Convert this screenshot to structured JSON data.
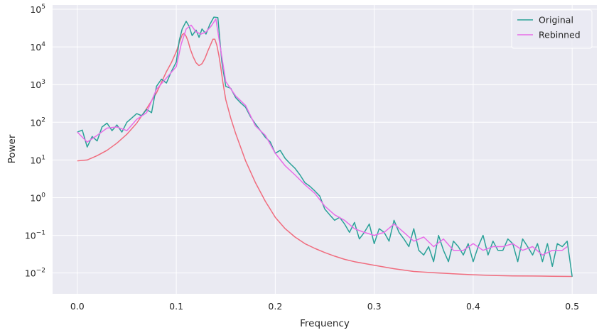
{
  "chart_data": {
    "type": "line",
    "title": "",
    "xlabel": "Frequency",
    "ylabel": "Power",
    "xlim": [
      -0.025,
      0.525
    ],
    "ylim": [
      0.0028,
      130000
    ],
    "yscale": "log",
    "grid": true,
    "legend_position": "top-right",
    "x_ticks": [
      {
        "value": 0.0,
        "label": "0.0"
      },
      {
        "value": 0.1,
        "label": "0.1"
      },
      {
        "value": 0.2,
        "label": "0.2"
      },
      {
        "value": 0.3,
        "label": "0.3"
      },
      {
        "value": 0.4,
        "label": "0.4"
      },
      {
        "value": 0.5,
        "label": "0.5"
      }
    ],
    "y_ticks": [
      {
        "value": 0.01,
        "base": "10",
        "exp": "−2"
      },
      {
        "value": 0.1,
        "base": "10",
        "exp": "−1"
      },
      {
        "value": 1,
        "base": "10",
        "exp": "0"
      },
      {
        "value": 10,
        "base": "10",
        "exp": "1"
      },
      {
        "value": 100,
        "base": "10",
        "exp": "2"
      },
      {
        "value": 1000,
        "base": "10",
        "exp": "3"
      },
      {
        "value": 10000,
        "base": "10",
        "exp": "4"
      },
      {
        "value": 100000,
        "base": "10",
        "exp": "5"
      }
    ],
    "series": [
      {
        "name": "Original",
        "color": "#2aa198",
        "x": [
          0.0,
          0.005,
          0.01,
          0.015,
          0.02,
          0.025,
          0.03,
          0.035,
          0.04,
          0.045,
          0.05,
          0.055,
          0.06,
          0.065,
          0.07,
          0.075,
          0.08,
          0.085,
          0.09,
          0.095,
          0.1,
          0.103,
          0.106,
          0.11,
          0.113,
          0.116,
          0.12,
          0.123,
          0.126,
          0.13,
          0.134,
          0.138,
          0.142,
          0.146,
          0.15,
          0.155,
          0.16,
          0.165,
          0.17,
          0.175,
          0.18,
          0.185,
          0.19,
          0.195,
          0.2,
          0.205,
          0.21,
          0.215,
          0.22,
          0.225,
          0.23,
          0.235,
          0.24,
          0.245,
          0.25,
          0.255,
          0.26,
          0.265,
          0.27,
          0.275,
          0.28,
          0.285,
          0.29,
          0.295,
          0.3,
          0.305,
          0.31,
          0.315,
          0.32,
          0.325,
          0.33,
          0.335,
          0.34,
          0.345,
          0.35,
          0.355,
          0.36,
          0.365,
          0.37,
          0.375,
          0.38,
          0.385,
          0.39,
          0.395,
          0.4,
          0.405,
          0.41,
          0.415,
          0.42,
          0.425,
          0.43,
          0.435,
          0.44,
          0.445,
          0.45,
          0.455,
          0.46,
          0.465,
          0.47,
          0.475,
          0.48,
          0.485,
          0.49,
          0.495,
          0.5
        ],
        "y": [
          55,
          62,
          22,
          42,
          32,
          75,
          95,
          60,
          85,
          55,
          100,
          130,
          170,
          150,
          220,
          180,
          900,
          1400,
          1100,
          2200,
          4000,
          15000,
          30000,
          48000,
          35000,
          20000,
          28000,
          18000,
          30000,
          22000,
          40000,
          62000,
          60000,
          4000,
          900,
          800,
          450,
          330,
          250,
          140,
          90,
          60,
          40,
          30,
          15,
          18,
          11,
          8,
          6,
          4,
          2.5,
          2,
          1.5,
          1.1,
          0.5,
          0.35,
          0.25,
          0.3,
          0.2,
          0.12,
          0.22,
          0.08,
          0.12,
          0.2,
          0.06,
          0.15,
          0.12,
          0.07,
          0.25,
          0.12,
          0.08,
          0.05,
          0.15,
          0.04,
          0.03,
          0.05,
          0.02,
          0.1,
          0.04,
          0.02,
          0.07,
          0.05,
          0.03,
          0.06,
          0.02,
          0.05,
          0.1,
          0.03,
          0.07,
          0.04,
          0.04,
          0.08,
          0.06,
          0.02,
          0.08,
          0.05,
          0.03,
          0.06,
          0.02,
          0.06,
          0.015,
          0.06,
          0.05,
          0.07,
          0.008
        ]
      },
      {
        "name": "Rebinned",
        "color": "#e86de8",
        "x": [
          0.0,
          0.01,
          0.02,
          0.03,
          0.04,
          0.05,
          0.06,
          0.07,
          0.08,
          0.09,
          0.1,
          0.105,
          0.11,
          0.115,
          0.12,
          0.125,
          0.13,
          0.135,
          0.14,
          0.145,
          0.15,
          0.16,
          0.17,
          0.18,
          0.19,
          0.2,
          0.21,
          0.22,
          0.23,
          0.24,
          0.25,
          0.26,
          0.27,
          0.28,
          0.29,
          0.3,
          0.31,
          0.32,
          0.33,
          0.34,
          0.35,
          0.36,
          0.37,
          0.38,
          0.39,
          0.4,
          0.41,
          0.42,
          0.43,
          0.44,
          0.45,
          0.46,
          0.47,
          0.48,
          0.49,
          0.495
        ],
        "y": [
          55,
          30,
          45,
          70,
          75,
          60,
          120,
          180,
          750,
          1500,
          3000,
          12000,
          30000,
          38000,
          25000,
          22000,
          25000,
          35000,
          55000,
          8000,
          1200,
          500,
          280,
          80,
          45,
          15,
          7,
          4,
          2.2,
          1.3,
          0.6,
          0.35,
          0.25,
          0.15,
          0.12,
          0.1,
          0.12,
          0.2,
          0.12,
          0.07,
          0.09,
          0.05,
          0.08,
          0.04,
          0.04,
          0.06,
          0.04,
          0.05,
          0.05,
          0.06,
          0.04,
          0.05,
          0.03,
          0.04,
          0.04,
          0.05
        ]
      },
      {
        "name": "",
        "color": "#f06c7e",
        "x": [
          0.0,
          0.01,
          0.02,
          0.03,
          0.04,
          0.05,
          0.06,
          0.07,
          0.08,
          0.09,
          0.095,
          0.1,
          0.103,
          0.106,
          0.108,
          0.11,
          0.112,
          0.114,
          0.117,
          0.12,
          0.123,
          0.126,
          0.129,
          0.132,
          0.135,
          0.137,
          0.139,
          0.141,
          0.143,
          0.145,
          0.147,
          0.15,
          0.155,
          0.16,
          0.17,
          0.18,
          0.19,
          0.2,
          0.21,
          0.22,
          0.23,
          0.24,
          0.25,
          0.26,
          0.27,
          0.28,
          0.3,
          0.32,
          0.34,
          0.36,
          0.38,
          0.4,
          0.42,
          0.44,
          0.46,
          0.48,
          0.5
        ],
        "y": [
          9.5,
          10,
          13,
          18,
          28,
          48,
          95,
          230,
          600,
          2200,
          3800,
          7500,
          13000,
          21000,
          23000,
          19000,
          14000,
          9000,
          5500,
          3800,
          3200,
          3600,
          5000,
          8000,
          12000,
          16000,
          16000,
          11000,
          6000,
          2800,
          1200,
          400,
          130,
          50,
          9.5,
          2.5,
          0.8,
          0.3,
          0.15,
          0.09,
          0.06,
          0.045,
          0.035,
          0.028,
          0.023,
          0.02,
          0.016,
          0.013,
          0.011,
          0.0102,
          0.0095,
          0.009,
          0.0086,
          0.0084,
          0.0083,
          0.0082,
          0.0081
        ]
      }
    ]
  }
}
